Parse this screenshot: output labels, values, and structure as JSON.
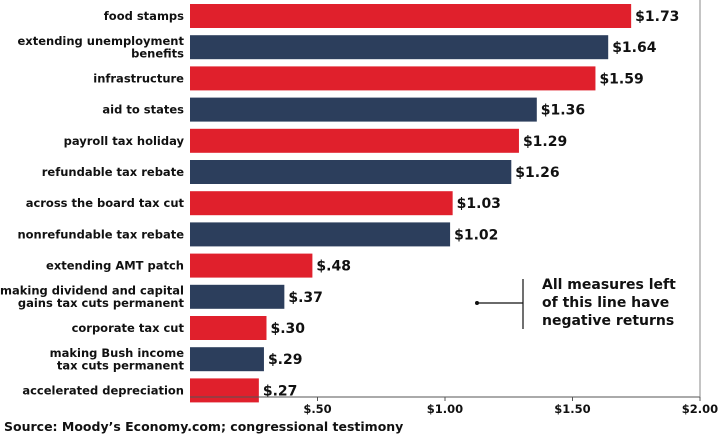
{
  "chart_data": {
    "type": "bar",
    "orientation": "horizontal",
    "title": "",
    "xlabel": "",
    "ylabel": "",
    "xlim": [
      0,
      2.0
    ],
    "grid": false,
    "categories": [
      "food stamps",
      "extending unemployment benefits",
      "infrastructure",
      "aid to states",
      "payroll tax holiday",
      "refundable tax rebate",
      "across the board tax cut",
      "nonrefundable tax rebate",
      "extending AMT patch",
      "making dividend and capital gains tax cuts permanent",
      "corporate tax cut",
      "making Bush income tax cuts permanent",
      "accelerated depreciation"
    ],
    "category_lines": [
      [
        "food stamps"
      ],
      [
        "extending unemployment",
        "benefits"
      ],
      [
        "infrastructure"
      ],
      [
        "aid to states"
      ],
      [
        "payroll tax holiday"
      ],
      [
        "refundable tax rebate"
      ],
      [
        "across the board tax cut"
      ],
      [
        "nonrefundable tax rebate"
      ],
      [
        "extending AMT patch"
      ],
      [
        "making dividend and capital",
        "gains tax cuts permanent"
      ],
      [
        "corporate tax cut"
      ],
      [
        "making Bush income",
        "tax cuts permanent"
      ],
      [
        "accelerated depreciation"
      ]
    ],
    "values": [
      1.73,
      1.64,
      1.59,
      1.36,
      1.29,
      1.26,
      1.03,
      1.02,
      0.48,
      0.37,
      0.3,
      0.29,
      0.27
    ],
    "value_labels": [
      "$1.73",
      "$1.64",
      "$1.59",
      "$1.36",
      "$1.29",
      "$1.26",
      "$1.03",
      "$1.02",
      "$.48",
      "$.37",
      "$.30",
      "$.29",
      "$.27"
    ],
    "bar_colors": [
      "#e0202c",
      "#2c3e5c",
      "#e0202c",
      "#2c3e5c",
      "#e0202c",
      "#2c3e5c",
      "#e0202c",
      "#2c3e5c",
      "#e0202c",
      "#2c3e5c",
      "#e0202c",
      "#2c3e5c",
      "#e0202c"
    ],
    "ticks": [
      {
        "value": 0.5,
        "label": "$.50"
      },
      {
        "value": 1.0,
        "label": "$1.00"
      },
      {
        "value": 1.5,
        "label": "$1.50"
      },
      {
        "value": 2.0,
        "label": "$2.00"
      }
    ],
    "annotation": {
      "text_lines": [
        "All measures left",
        "of this line have",
        "negative returns"
      ]
    }
  },
  "source": "Source: Moody’s Economy.com; congressional testimony"
}
